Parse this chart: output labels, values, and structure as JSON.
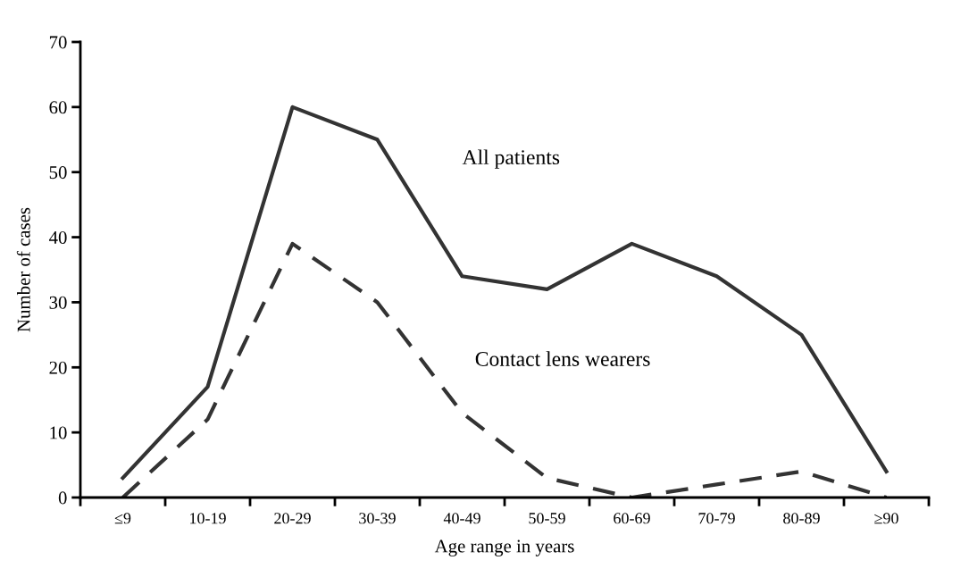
{
  "chart_data": {
    "type": "line",
    "xlabel": "Age range in years",
    "ylabel": "Number of cases",
    "categories": [
      "≤9",
      "10-19",
      "20-29",
      "30-39",
      "40-49",
      "50-59",
      "60-69",
      "70-79",
      "80-89",
      "≥90"
    ],
    "series": [
      {
        "name": "All patients",
        "color": "#333333",
        "line_style": "solid",
        "values": [
          3,
          17,
          60,
          55,
          34,
          32,
          39,
          34,
          25,
          4
        ]
      },
      {
        "name": "Contact lens wearers",
        "color": "#333333",
        "line_style": "dashed",
        "values": [
          0,
          12,
          39,
          30,
          13,
          3,
          0,
          2,
          4,
          0
        ]
      }
    ],
    "ylim": [
      0,
      70
    ],
    "yticks": [
      0,
      10,
      20,
      30,
      40,
      50,
      60,
      70
    ],
    "grid": false,
    "legend": false,
    "marker": "none"
  }
}
